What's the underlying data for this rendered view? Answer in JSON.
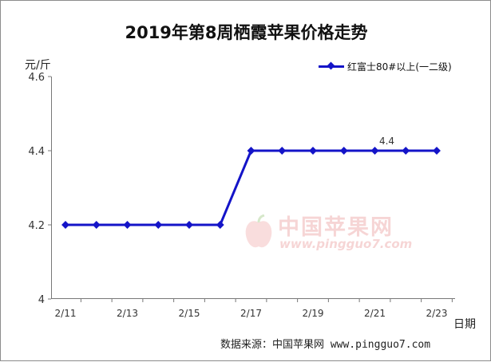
{
  "chart_data": {
    "type": "line",
    "title": "2019年第8周栖霞苹果价格走势",
    "ylabel": "元/斤",
    "xlabel": "日期",
    "ylim": [
      4,
      4.6
    ],
    "yticks": [
      "4",
      "4.2",
      "4.4",
      "4.6"
    ],
    "x": [
      "2/11",
      "2/12",
      "2/13",
      "2/14",
      "2/15",
      "2/16",
      "2/17",
      "2/18",
      "2/19",
      "2/20",
      "2/21",
      "2/22",
      "2/23"
    ],
    "xtick_labels": [
      "2/11",
      "2/13",
      "2/15",
      "2/17",
      "2/19",
      "2/21",
      "2/23"
    ],
    "series": [
      {
        "name": "红富士80#以上(一二级)",
        "color": "#1414c8",
        "values": [
          4.2,
          4.2,
          4.2,
          4.2,
          4.2,
          4.2,
          4.4,
          4.4,
          4.4,
          4.4,
          4.4,
          4.4,
          4.4
        ]
      }
    ],
    "annotation": {
      "text": "4.4",
      "index": 10
    },
    "grid": false,
    "legend": "top-right"
  },
  "source": "数据来源：中国苹果网 www.pingguo7.com",
  "watermark": {
    "name": "中国苹果网",
    "url": "www.pingguo7.com"
  }
}
